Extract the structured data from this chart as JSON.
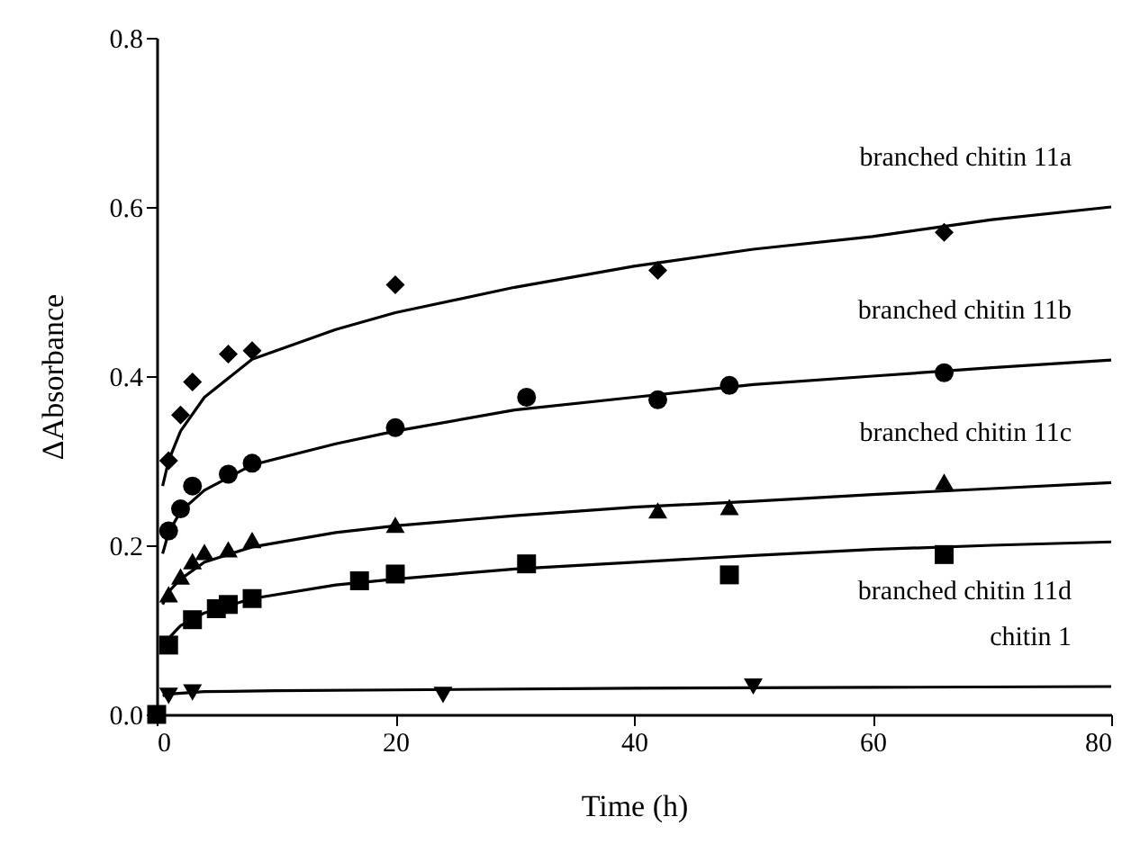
{
  "chart_data": {
    "type": "scatter",
    "xlabel": "Time (h)",
    "ylabel": "ΔAbsorbance",
    "xlim": [
      0,
      80
    ],
    "xticks": [
      0,
      20,
      40,
      60,
      80
    ],
    "ylim": [
      0,
      0.8
    ],
    "yticks": [
      {
        "value": 0,
        "label": "0.0"
      },
      0.2,
      0.4,
      0.6,
      0.8
    ],
    "grid": false,
    "series": [
      {
        "marker": "diamond",
        "color": "#000000",
        "x": [
          1,
          2,
          3,
          6,
          8,
          20,
          42,
          66
        ],
        "values": [
          0.3,
          0.354,
          0.393,
          0.426,
          0.43,
          0.508,
          0.525,
          0.57
        ]
      },
      {
        "marker": "circle",
        "color": "#000000",
        "x": [
          1,
          2,
          3,
          6,
          8,
          20,
          31,
          42,
          48,
          66
        ],
        "values": [
          0.217,
          0.243,
          0.27,
          0.284,
          0.297,
          0.339,
          0.375,
          0.372,
          0.389,
          0.404
        ]
      },
      {
        "marker": "triangle",
        "color": "#000000",
        "x": [
          1,
          2,
          3,
          4,
          6,
          8,
          20,
          42,
          48,
          66
        ],
        "values": [
          0.139,
          0.16,
          0.178,
          0.189,
          0.192,
          0.203,
          0.221,
          0.238,
          0.242,
          0.272
        ]
      },
      {
        "marker": "square",
        "color": "#000000",
        "x": [
          0,
          1,
          3,
          5,
          6,
          8,
          17,
          20,
          31,
          48,
          66
        ],
        "values": [
          0,
          0.082,
          0.112,
          0.125,
          0.13,
          0.137,
          0.158,
          0.166,
          0.178,
          0.165,
          0.189
        ]
      },
      {
        "marker": "triangle-down",
        "color": "#000000",
        "x": [
          1,
          3,
          24,
          50
        ],
        "values": [
          0.022,
          0.026,
          0.023,
          0.033
        ]
      },
      {
        "type": "line",
        "name": "branched chitin 11a",
        "line_style": "solid",
        "color": "#000000",
        "x": [
          0.5,
          1,
          2,
          4,
          8,
          15,
          20,
          30,
          40,
          50,
          60,
          70,
          80
        ],
        "values": [
          0.27,
          0.3,
          0.335,
          0.375,
          0.42,
          0.455,
          0.475,
          0.505,
          0.53,
          0.55,
          0.565,
          0.585,
          0.6
        ]
      },
      {
        "type": "line",
        "name": "branched chitin 11b",
        "line_style": "solid",
        "color": "#000000",
        "x": [
          0.5,
          1,
          2,
          4,
          8,
          15,
          20,
          30,
          40,
          50,
          60,
          70,
          80
        ],
        "values": [
          0.19,
          0.215,
          0.24,
          0.265,
          0.295,
          0.32,
          0.335,
          0.36,
          0.375,
          0.39,
          0.4,
          0.41,
          0.419
        ]
      },
      {
        "type": "line",
        "name": "branched chitin 11c",
        "line_style": "solid",
        "color": "#000000",
        "x": [
          0.5,
          1,
          2,
          4,
          8,
          15,
          20,
          30,
          40,
          50,
          60,
          70,
          80
        ],
        "values": [
          0.13,
          0.145,
          0.16,
          0.18,
          0.198,
          0.215,
          0.223,
          0.235,
          0.245,
          0.252,
          0.26,
          0.267,
          0.274
        ]
      },
      {
        "type": "line",
        "name": "branched chitin 11d",
        "line_style": "solid",
        "color": "#000000",
        "x": [
          0.5,
          1,
          2,
          4,
          8,
          15,
          20,
          30,
          40,
          50,
          60,
          70,
          80
        ],
        "values": [
          0.08,
          0.09,
          0.105,
          0.12,
          0.137,
          0.153,
          0.16,
          0.172,
          0.18,
          0.188,
          0.195,
          0.2,
          0.204
        ]
      },
      {
        "type": "line",
        "name": "chitin 1",
        "line_style": "solid",
        "color": "#000000",
        "x": [
          0.5,
          1,
          4,
          10,
          20,
          40,
          60,
          80
        ],
        "values": [
          0.022,
          0.024,
          0.027,
          0.028,
          0.029,
          0.031,
          0.032,
          0.033
        ]
      }
    ]
  }
}
